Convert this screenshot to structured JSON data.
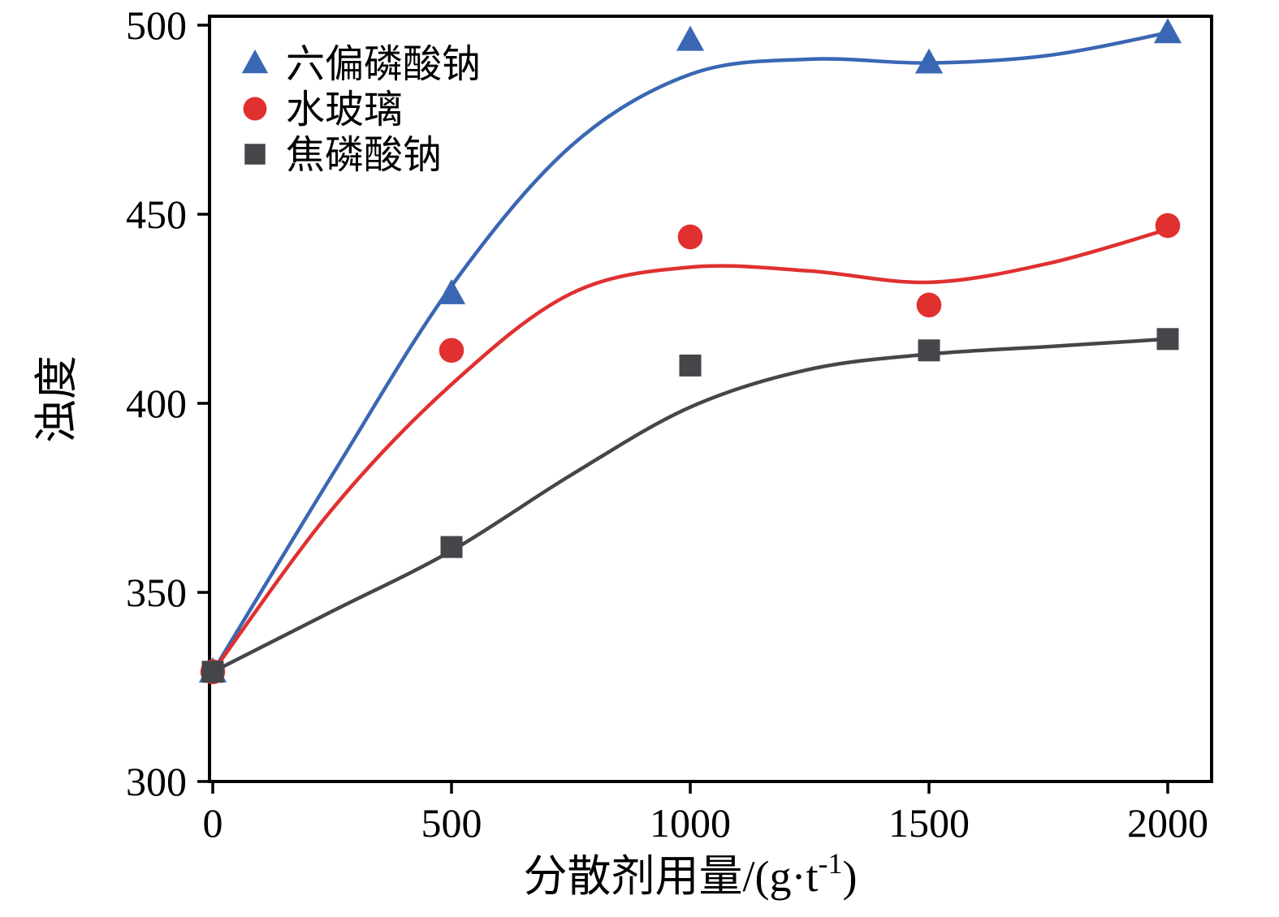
{
  "chart_data": {
    "type": "scatter",
    "title": "",
    "xlabel": "分散剂用量/(g·t⁻¹)",
    "xlabel_parts": {
      "main": "分散剂用量/(g·t",
      "sup": "-1",
      "end": ")"
    },
    "ylabel": "浊度",
    "x_ticks": [
      0,
      500,
      1000,
      1500,
      2000
    ],
    "y_ticks": [
      300,
      350,
      400,
      450,
      500
    ],
    "xlim": [
      0,
      2090
    ],
    "ylim": [
      300,
      500
    ],
    "grid": false,
    "legend_position": "top-left",
    "axis_color": "#000000",
    "series": [
      {
        "name": "六偏磷酸钠",
        "marker": "triangle",
        "color": "#3A67B3",
        "points": [
          [
            0,
            329
          ],
          [
            500,
            429
          ],
          [
            1000,
            496
          ],
          [
            1500,
            490
          ],
          [
            2000,
            498
          ]
        ],
        "curve": [
          [
            0,
            329
          ],
          [
            250,
            381
          ],
          [
            500,
            431
          ],
          [
            750,
            468
          ],
          [
            1000,
            487
          ],
          [
            1250,
            491
          ],
          [
            1500,
            490
          ],
          [
            1750,
            492
          ],
          [
            2000,
            498
          ]
        ]
      },
      {
        "name": "水玻璃",
        "marker": "circle",
        "color": "#E03030",
        "points": [
          [
            0,
            329
          ],
          [
            500,
            414
          ],
          [
            1000,
            444
          ],
          [
            1500,
            426
          ],
          [
            2000,
            447
          ]
        ],
        "curve": [
          [
            0,
            329
          ],
          [
            250,
            372
          ],
          [
            500,
            405
          ],
          [
            750,
            429
          ],
          [
            1000,
            436
          ],
          [
            1250,
            435
          ],
          [
            1500,
            432
          ],
          [
            1750,
            437
          ],
          [
            2000,
            446
          ]
        ]
      },
      {
        "name": "焦磷酸钠",
        "marker": "square",
        "color": "#44464A",
        "points": [
          [
            0,
            329
          ],
          [
            500,
            362
          ],
          [
            1000,
            410
          ],
          [
            1500,
            414
          ],
          [
            2000,
            417
          ]
        ],
        "curve": [
          [
            0,
            329
          ],
          [
            250,
            345
          ],
          [
            500,
            361
          ],
          [
            750,
            381
          ],
          [
            1000,
            399
          ],
          [
            1250,
            409
          ],
          [
            1500,
            413
          ],
          [
            1750,
            415
          ],
          [
            2000,
            417
          ]
        ]
      }
    ]
  }
}
